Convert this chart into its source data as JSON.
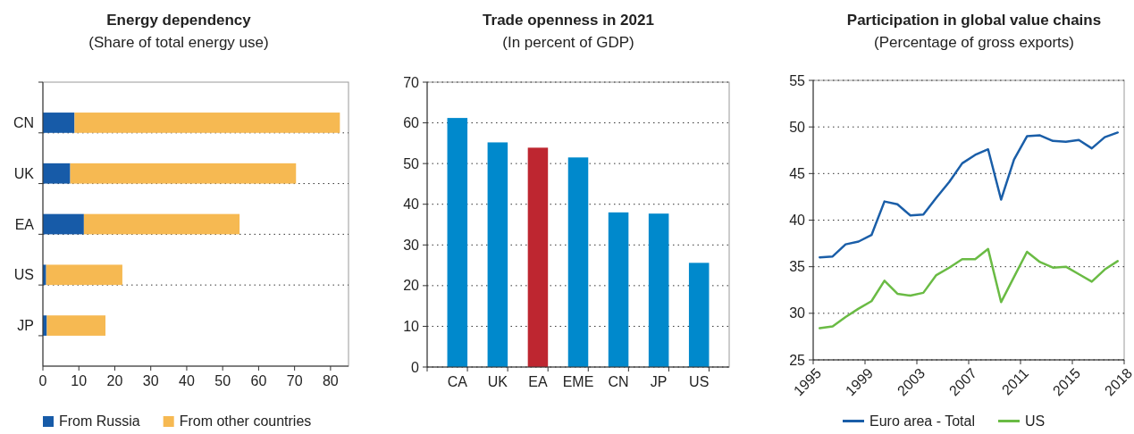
{
  "chart_data": [
    {
      "type": "bar",
      "title": "Energy dependency",
      "subtitle": "(Share of total energy use)",
      "orientation": "horizontal",
      "stacked": true,
      "categories": [
        "CN",
        "UK",
        "EA",
        "US",
        "JP"
      ],
      "series": [
        {
          "name": "From Russia",
          "color": "#175ba8",
          "values": [
            8.8,
            7.6,
            11.4,
            0.9,
            1.1
          ]
        },
        {
          "name": "From other countries",
          "color": "#f6b952",
          "values": [
            73.8,
            62.8,
            43.3,
            21.2,
            16.3
          ]
        }
      ],
      "xlim": [
        0,
        85
      ],
      "xticks": [
        0,
        10,
        20,
        30,
        40,
        50,
        60,
        70,
        80
      ],
      "grid": "y",
      "legend": "bottom"
    },
    {
      "type": "bar",
      "title": "Trade openness in 2021",
      "subtitle": "(In percent of GDP)",
      "categories": [
        "CA",
        "UK",
        "EA",
        "EME",
        "CN",
        "JP",
        "US"
      ],
      "values": [
        61.2,
        55.2,
        53.9,
        51.5,
        38.0,
        37.7,
        25.6
      ],
      "colors": [
        "#0089cc",
        "#0089cc",
        "#be2630",
        "#0089cc",
        "#0089cc",
        "#0089cc",
        "#0089cc"
      ],
      "ylim": [
        0,
        70
      ],
      "yticks": [
        0,
        10,
        20,
        30,
        40,
        50,
        60,
        70
      ],
      "grid": "y"
    },
    {
      "type": "line",
      "title": "Participation in global value chains",
      "subtitle": "(Percentage of gross exports)",
      "x": [
        1995,
        1996,
        1997,
        1998,
        1999,
        2000,
        2001,
        2002,
        2003,
        2004,
        2005,
        2006,
        2007,
        2008,
        2009,
        2010,
        2011,
        2012,
        2013,
        2014,
        2015,
        2016,
        2017,
        2018
      ],
      "series": [
        {
          "name": "Euro area - Total",
          "color": "#1a5ea8",
          "values": [
            36.0,
            36.1,
            37.4,
            37.7,
            38.4,
            42.0,
            41.7,
            40.5,
            40.6,
            42.4,
            44.1,
            46.1,
            47.0,
            47.6,
            42.2,
            46.5,
            49.0,
            49.1,
            48.5,
            48.4,
            48.6,
            47.7,
            48.9,
            49.4
          ]
        },
        {
          "name": "US",
          "color": "#6abb44",
          "values": [
            28.4,
            28.6,
            29.6,
            30.5,
            31.3,
            33.5,
            32.1,
            31.9,
            32.2,
            34.1,
            34.9,
            35.8,
            35.8,
            36.9,
            31.2,
            33.9,
            36.6,
            35.5,
            34.9,
            35.0,
            34.2,
            33.4,
            34.7,
            35.6
          ]
        }
      ],
      "xlim": [
        1994.5,
        2018.5
      ],
      "xticks": [
        {
          "value": 1994.5,
          "label": "1995"
        },
        {
          "value": 1998.5,
          "label": "1999"
        },
        {
          "value": 2002.5,
          "label": "2003"
        },
        {
          "value": 2006.5,
          "label": "2007"
        },
        {
          "value": 2010.5,
          "label": "2011"
        },
        {
          "value": 2014.5,
          "label": "2015"
        },
        {
          "value": 2018.5,
          "label": "2018"
        }
      ],
      "ylim": [
        25,
        55
      ],
      "yticks": [
        25,
        30,
        35,
        40,
        45,
        50,
        55
      ],
      "grid": "y",
      "legend": "bottom",
      "line_style": "solid",
      "marker": "none"
    }
  ]
}
